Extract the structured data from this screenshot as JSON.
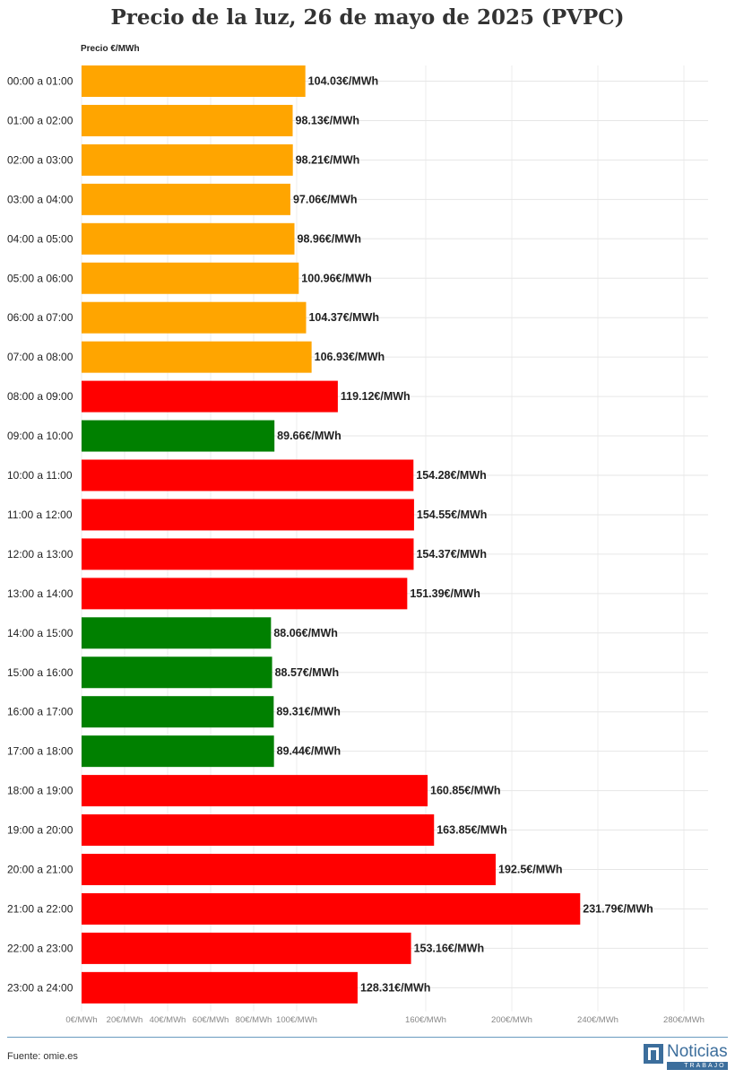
{
  "chart_data": {
    "type": "bar",
    "orientation": "horizontal",
    "title": "Precio de la luz, 26 de mayo de 2025 (PVPC)",
    "ylabel": "Precio €/MWh",
    "categories": [
      "00:00 a 01:00",
      "01:00 a 02:00",
      "02:00 a 03:00",
      "03:00 a 04:00",
      "04:00 a 05:00",
      "05:00 a 06:00",
      "06:00 a 07:00",
      "07:00 a 08:00",
      "08:00 a 09:00",
      "09:00 a 10:00",
      "10:00 a 11:00",
      "11:00 a 12:00",
      "12:00 a 13:00",
      "13:00 a 14:00",
      "14:00 a 15:00",
      "15:00 a 16:00",
      "16:00 a 17:00",
      "17:00 a 18:00",
      "18:00 a 19:00",
      "19:00 a 20:00",
      "20:00 a 21:00",
      "21:00 a 22:00",
      "22:00 a 23:00",
      "23:00 a 24:00"
    ],
    "values": [
      104.03,
      98.13,
      98.21,
      97.06,
      98.96,
      100.96,
      104.37,
      106.93,
      119.12,
      89.66,
      154.28,
      154.55,
      154.37,
      151.39,
      88.06,
      88.57,
      89.31,
      89.44,
      160.85,
      163.85,
      192.5,
      231.79,
      153.16,
      128.31
    ],
    "labels": [
      "104.03€/MWh",
      "98.13€/MWh",
      "98.21€/MWh",
      "97.06€/MWh",
      "98.96€/MWh",
      "100.96€/MWh",
      "104.37€/MWh",
      "106.93€/MWh",
      "119.12€/MWh",
      "89.66€/MWh",
      "154.28€/MWh",
      "154.55€/MWh",
      "154.37€/MWh",
      "151.39€/MWh",
      "88.06€/MWh",
      "88.57€/MWh",
      "89.31€/MWh",
      "89.44€/MWh",
      "160.85€/MWh",
      "163.85€/MWh",
      "192.5€/MWh",
      "231.79€/MWh",
      "153.16€/MWh",
      "128.31€/MWh"
    ],
    "bar_colors": [
      "#ffa500",
      "#ffa500",
      "#ffa500",
      "#ffa500",
      "#ffa500",
      "#ffa500",
      "#ffa500",
      "#ffa500",
      "#ff0000",
      "#008000",
      "#ff0000",
      "#ff0000",
      "#ff0000",
      "#ff0000",
      "#008000",
      "#008000",
      "#008000",
      "#008000",
      "#ff0000",
      "#ff0000",
      "#ff0000",
      "#ff0000",
      "#ff0000",
      "#ff0000"
    ],
    "xlim": [
      0,
      290
    ],
    "xticks": [
      0,
      20,
      40,
      60,
      80,
      100,
      160,
      200,
      240,
      280
    ],
    "xtick_labels": [
      "0€/MWh",
      "20€/MWh",
      "40€/MWh",
      "60€/MWh",
      "80€/MWh",
      "100€/MWh",
      "160€/MWh",
      "200€/MWh",
      "240€/MWh",
      "280€/MWh"
    ],
    "grid": true
  },
  "footer": {
    "source": "Fuente: omie.es",
    "logo_name": "Noticias",
    "logo_sub": "TRABAJO"
  }
}
